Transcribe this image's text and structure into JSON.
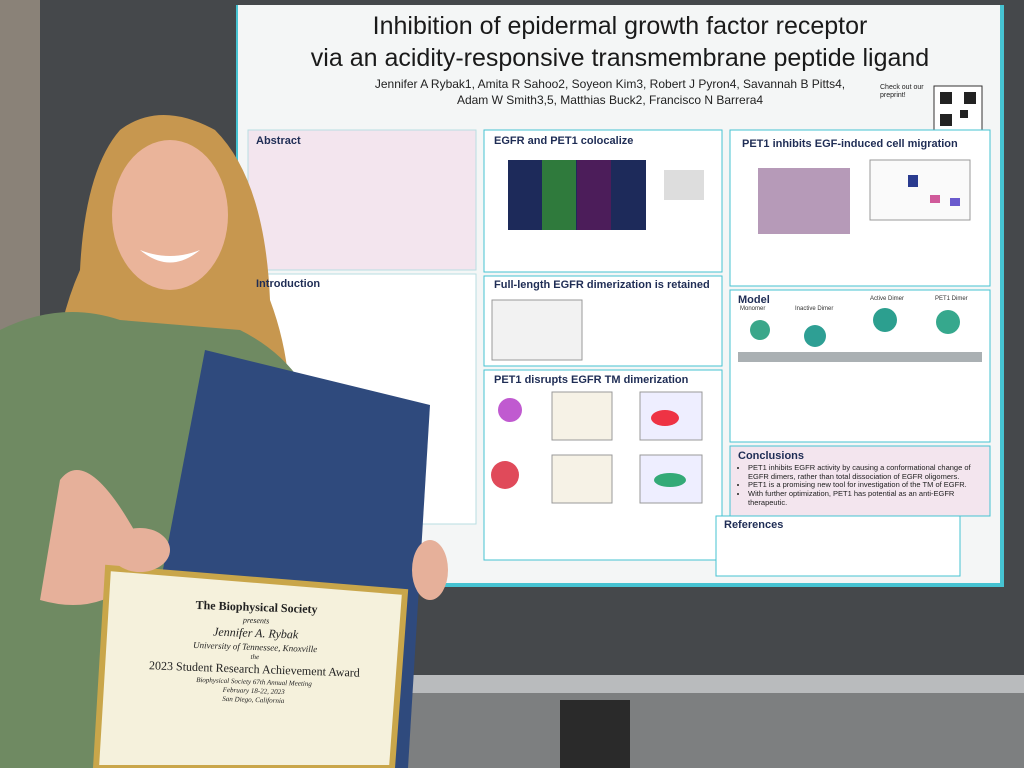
{
  "poster": {
    "title": [
      "Inhibition of epidermal growth factor receptor",
      "via an acidity-responsive transmembrane peptide ligand"
    ],
    "authors": [
      "Jennifer A Rybak1, Amita R Sahoo2, Soyeon Kim3, Robert J Pyron4, Savannah B Pitts4,",
      "Adam W Smith3,5, Matthias Buck2, Francisco N Barrera4"
    ],
    "qr_note": "Check out our preprint!",
    "sections": {
      "abstract": "Abstract",
      "introduction": "Introduction",
      "colocalize": "EGFR and PET1 colocalize",
      "dimerization": "Full-length EGFR dimerization is retained",
      "disrupts": "PET1 disrupts EGFR TM dimerization",
      "migration": "PET1 inhibits EGF-induced cell migration",
      "model": "Model",
      "conclusions": "Conclusions",
      "references": "References"
    },
    "model_labels": [
      "Monomer",
      "Inactive Dimer",
      "Active Dimer",
      "PET1 Dimer"
    ],
    "conclusions": [
      "PET1 inhibits EGFR activity by causing a conformational change of EGFR dimers, rather than total dissociation of EGFR oligomers.",
      "PET1 is a promising new tool for investigation of the TM of EGFR.",
      "With further optimization, PET1 has potential as an anti-EGFR therapeutic."
    ]
  },
  "certificate": {
    "society": "The Biophysical Society",
    "presents": "presents",
    "name": "Jennifer A. Rybak",
    "university": "University of Tennessee, Knoxville",
    "the": "the",
    "award": "2023 Student Research Achievement Award",
    "meeting": "Biophysical Society 67th Annual Meeting",
    "dates": "February 18-22, 2023",
    "place": "San Diego, California"
  }
}
